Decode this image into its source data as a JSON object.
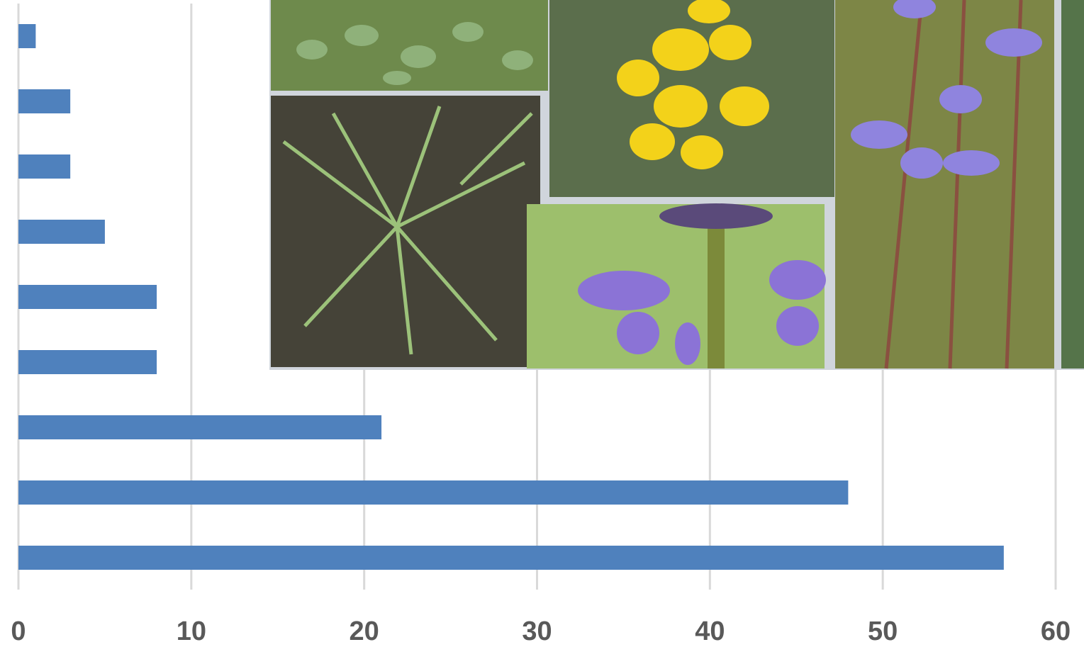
{
  "chart_data": {
    "type": "bar",
    "orientation": "horizontal",
    "categories": [
      null,
      null,
      null,
      null,
      null,
      null,
      null,
      null,
      null
    ],
    "values": [
      1,
      3,
      3,
      5,
      8,
      8,
      21,
      48,
      57
    ],
    "color": "#4f81bd",
    "xlim": [
      0,
      60
    ],
    "xticks": [
      0,
      10,
      20,
      30,
      40,
      50,
      60
    ],
    "grid": true
  }
}
